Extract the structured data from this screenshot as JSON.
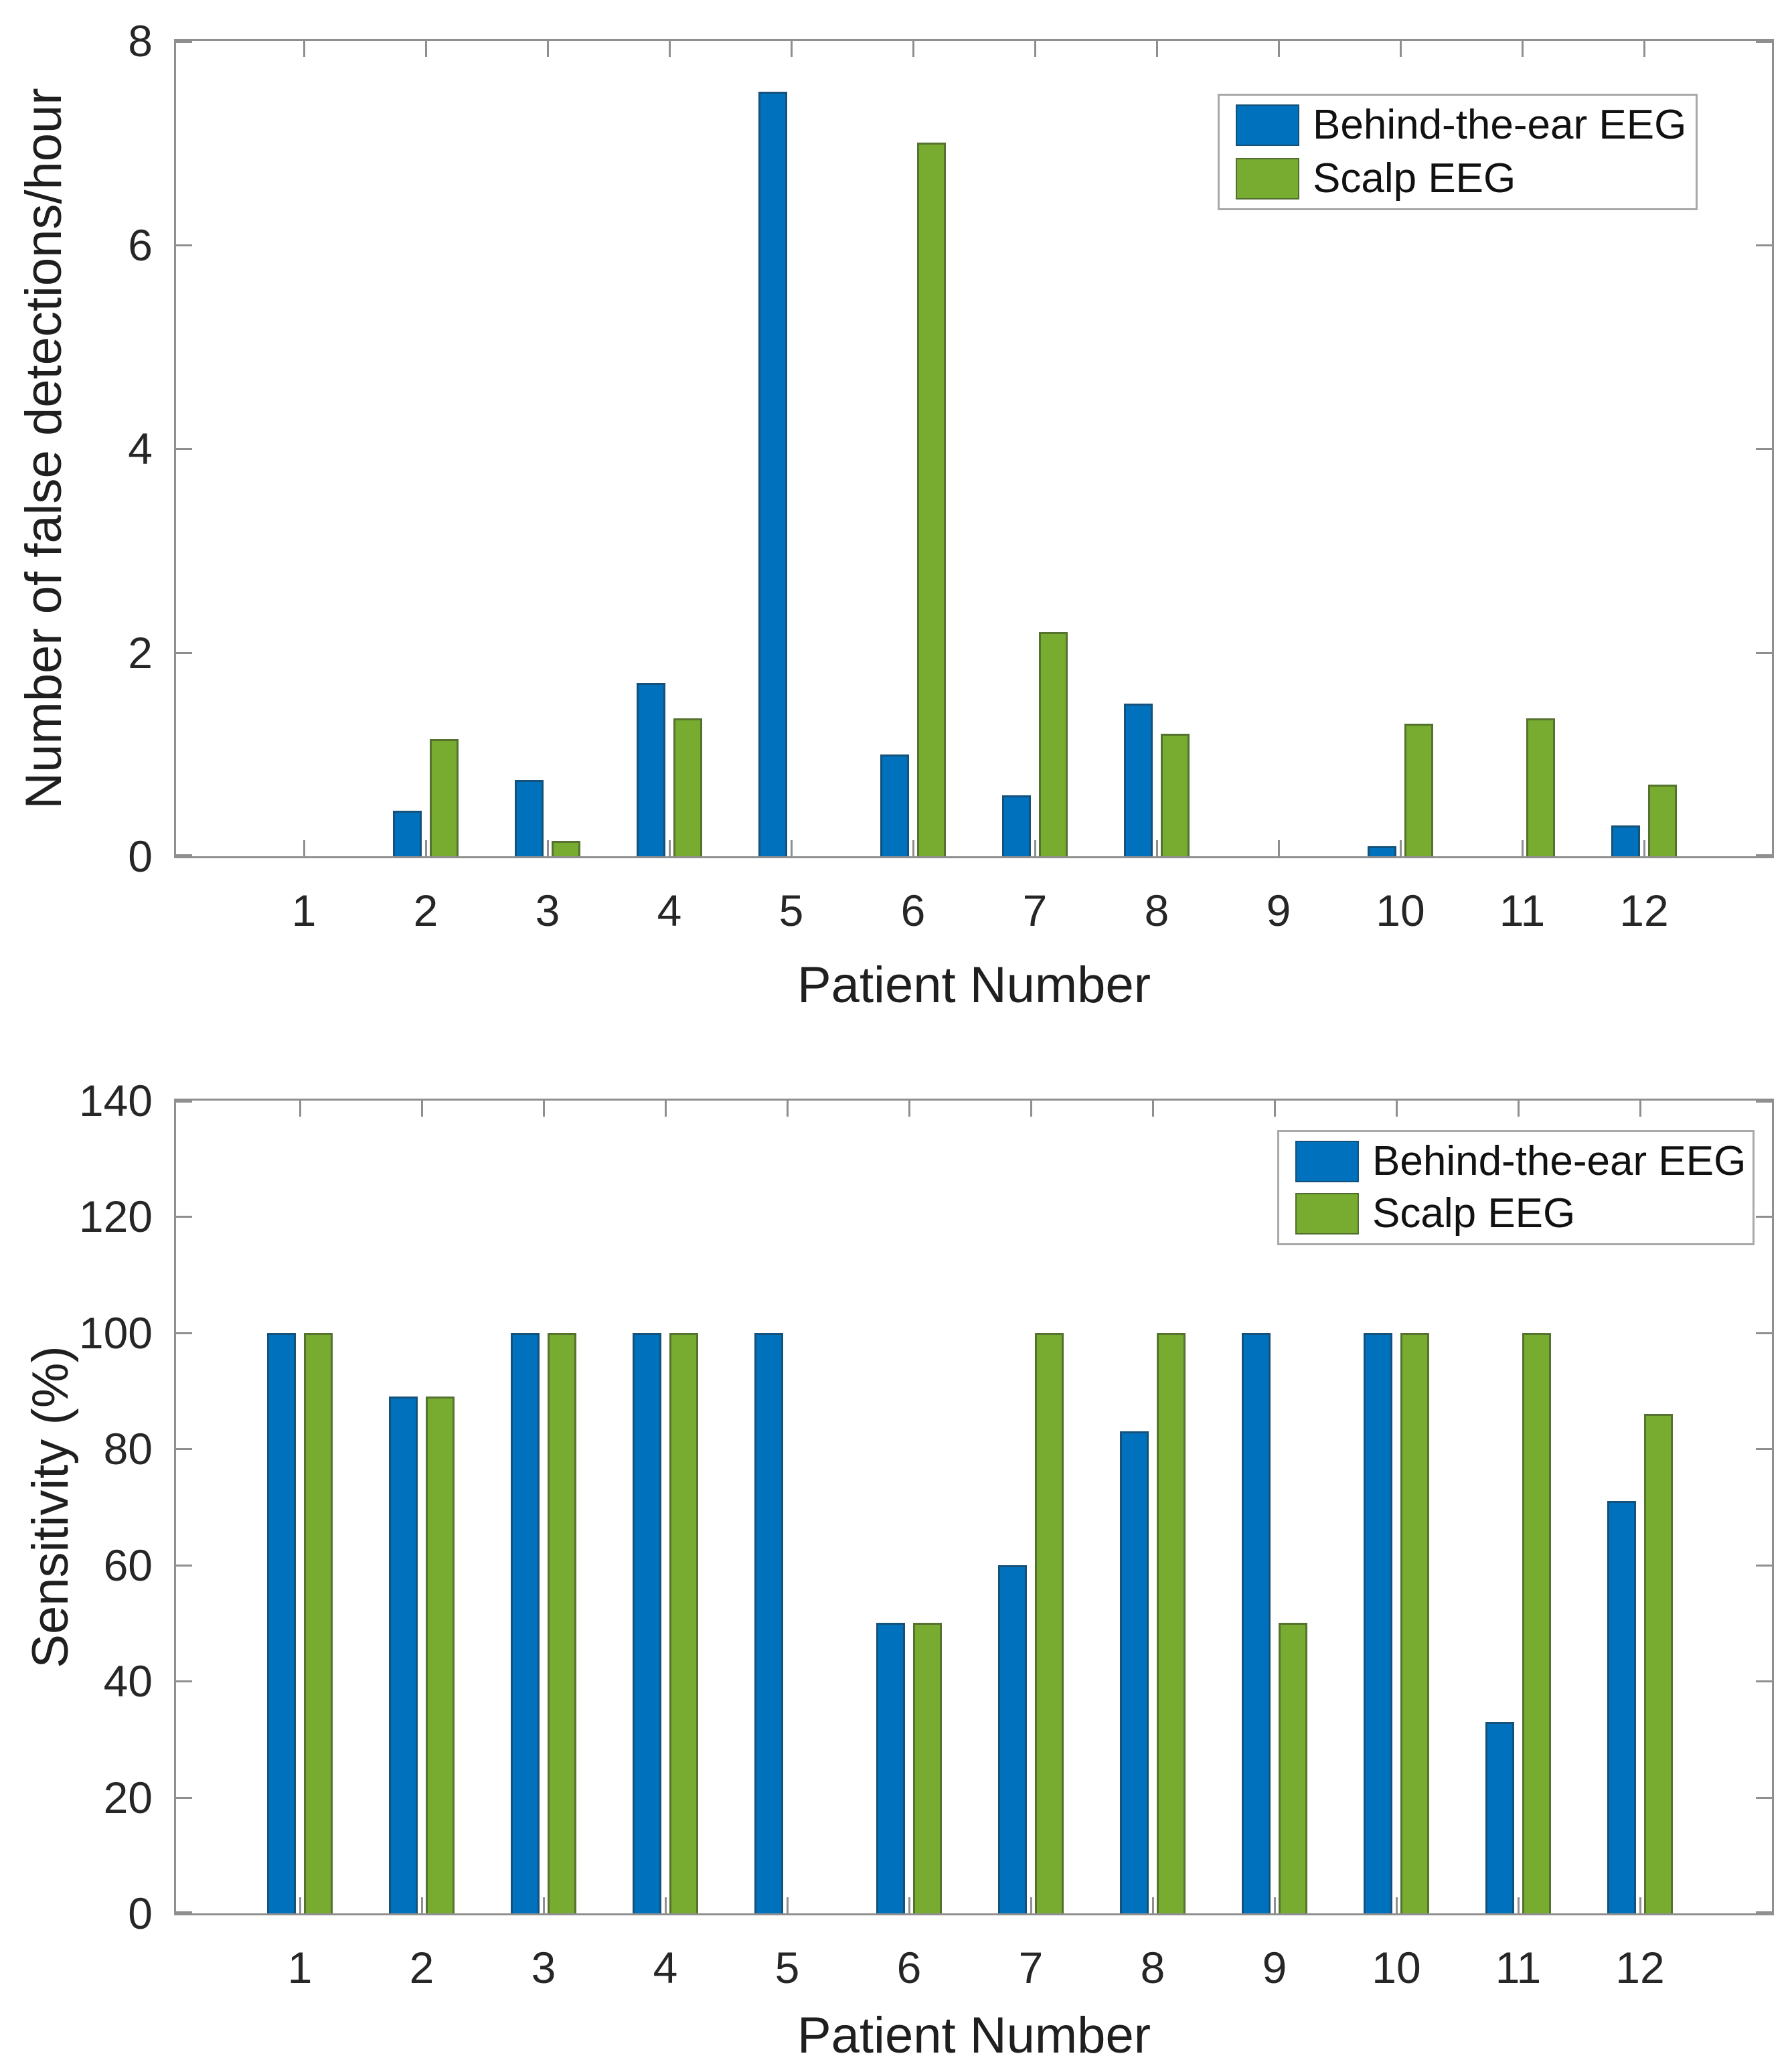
{
  "figure": {
    "background": "#ffffff",
    "axis_color": "#8f8f8f",
    "text_color": "#262626",
    "legend": {
      "items": [
        {
          "label": "Behind-the-ear EEG",
          "color": "#0072BD"
        },
        {
          "label": "Scalp EEG",
          "color": "#77AC30"
        }
      ],
      "position": "top-right"
    }
  },
  "chart_data": [
    {
      "type": "bar",
      "title": "",
      "xlabel": "Patient Number",
      "ylabel": "Number of false detections/hour",
      "categories": [
        "1",
        "2",
        "3",
        "4",
        "5",
        "6",
        "7",
        "8",
        "9",
        "10",
        "11",
        "12"
      ],
      "ylim": [
        0,
        8
      ],
      "yticks": [
        0,
        2,
        4,
        6,
        8
      ],
      "grid": false,
      "legend_position": "top-right",
      "series": [
        {
          "name": "Behind-the-ear EEG",
          "color": "#0072BD",
          "values": [
            0,
            0.45,
            0.75,
            1.7,
            7.5,
            1.0,
            0.6,
            1.5,
            0,
            0.1,
            0,
            0.3
          ]
        },
        {
          "name": "Scalp EEG",
          "color": "#77AC30",
          "values": [
            0,
            1.15,
            0.15,
            1.35,
            0,
            7.0,
            2.2,
            1.2,
            0,
            1.3,
            1.35,
            0.7
          ]
        }
      ]
    },
    {
      "type": "bar",
      "title": "",
      "xlabel": "Patient Number",
      "ylabel": "Sensitivity (%)",
      "categories": [
        "1",
        "2",
        "3",
        "4",
        "5",
        "6",
        "7",
        "8",
        "9",
        "10",
        "11",
        "12"
      ],
      "ylim": [
        0,
        140
      ],
      "yticks": [
        0,
        20,
        40,
        60,
        80,
        100,
        120,
        140
      ],
      "grid": false,
      "legend_position": "top-right",
      "series": [
        {
          "name": "Behind-the-ear EEG",
          "color": "#0072BD",
          "values": [
            100,
            89,
            100,
            100,
            100,
            50,
            60,
            83,
            100,
            100,
            33,
            71
          ]
        },
        {
          "name": "Scalp EEG",
          "color": "#77AC30",
          "values": [
            100,
            89,
            100,
            100,
            0,
            50,
            100,
            100,
            50,
            100,
            100,
            86
          ]
        }
      ]
    }
  ]
}
